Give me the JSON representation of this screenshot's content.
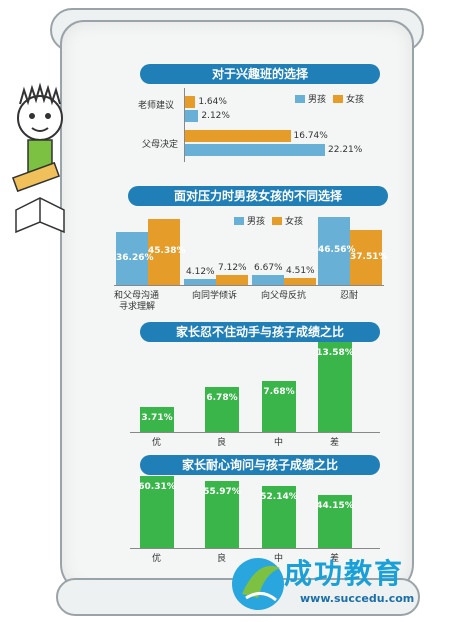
{
  "colors": {
    "boy": "#68b0d6",
    "girl": "#e59c28",
    "green": "#39b54a",
    "title_bg": "#1f7fb6"
  },
  "chart_data": [
    {
      "type": "bar",
      "orientation": "horizontal",
      "title": "对于兴趣班的选择",
      "categories": [
        "老师建议",
        "父母决定"
      ],
      "series": [
        {
          "name": "男孩",
          "values": [
            2.12,
            22.21
          ]
        },
        {
          "name": "女孩",
          "values": [
            1.64,
            16.74
          ]
        }
      ],
      "value_labels": {
        "boy": [
          "2.12%",
          "22.21%"
        ],
        "girl": [
          "1.64%",
          "16.74%"
        ]
      },
      "legend": "top-right"
    },
    {
      "type": "bar",
      "title": "面对压力时男孩女孩的不同选择",
      "categories": [
        "和父母沟通\n寻求理解",
        "向同学倾诉",
        "向父母反抗",
        "忍耐"
      ],
      "category_labels": [
        "和父母沟通",
        "寻求理解",
        "向同学倾诉",
        "向父母反抗",
        "忍耐"
      ],
      "series": [
        {
          "name": "男孩",
          "values": [
            36.26,
            4.12,
            6.67,
            46.56
          ]
        },
        {
          "name": "女孩",
          "values": [
            45.38,
            7.12,
            4.51,
            37.51
          ]
        }
      ],
      "value_labels": {
        "boy": [
          "36.26%",
          "4.12%",
          "6.67%",
          "46.56%"
        ],
        "girl": [
          "45.38%",
          "7.12%",
          "4.51%",
          "37.51%"
        ]
      },
      "legend": "top-right"
    },
    {
      "type": "bar",
      "title": "家长忍不住动手与孩子成绩之比",
      "categories": [
        "优",
        "良",
        "中",
        "差"
      ],
      "values": [
        3.71,
        6.78,
        7.68,
        13.58
      ],
      "value_labels": [
        "3.71%",
        "6.78%",
        "7.68%",
        "13.58%"
      ]
    },
    {
      "type": "bar",
      "title": "家长耐心询问与孩子成绩之比",
      "categories": [
        "优",
        "良",
        "中",
        "差"
      ],
      "values": [
        60.31,
        55.97,
        52.14,
        44.15
      ],
      "value_labels": [
        "60.31%",
        "55.97%",
        "52.14%",
        "44.15%"
      ]
    }
  ],
  "logo": {
    "name": "成功教育",
    "url": "www.succedu.com"
  }
}
